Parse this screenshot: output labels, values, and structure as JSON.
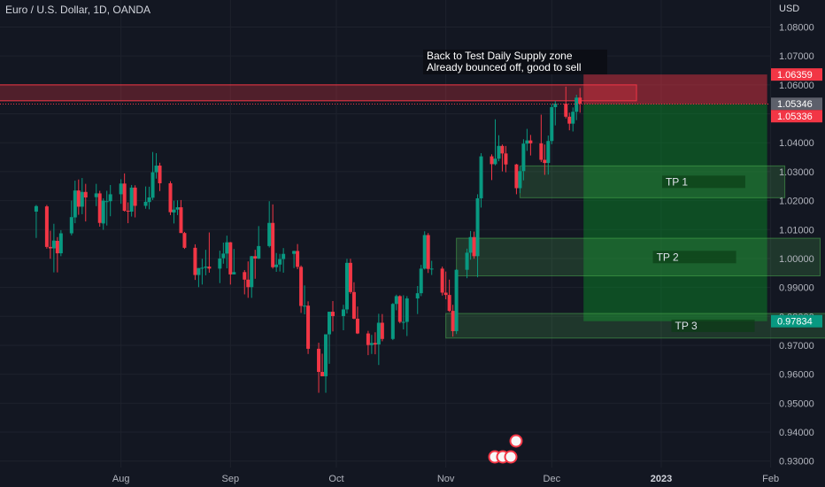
{
  "header": {
    "title": "Euro / U.S. Dollar, 1D, OANDA",
    "currency": "USD"
  },
  "annotation": {
    "line1": "Back to Test Daily Supply zone",
    "line2": "Already bounced off, good to sell"
  },
  "colors": {
    "background": "#131722",
    "up": "#089981",
    "down": "#f23645",
    "grid": "#1e222d",
    "text": "#b2b5be"
  },
  "chart_data": {
    "type": "candlestick",
    "symbol": "EURUSD",
    "y_axis": {
      "ticks": [
        "1.08000",
        "1.07000",
        "1.06000",
        "1.05000",
        "1.04000",
        "1.03000",
        "1.02000",
        "1.01000",
        "1.00000",
        "0.99000",
        "0.98000",
        "0.97000",
        "0.96000",
        "0.95000",
        "0.94000",
        "0.93000"
      ],
      "range": [
        0.928,
        1.083
      ]
    },
    "x_axis": {
      "labels": [
        "Aug",
        "Sep",
        "Oct",
        "Nov",
        "Dec",
        "2023",
        "Feb"
      ]
    },
    "price_labels": [
      {
        "text": "1.06359",
        "value": 1.06359,
        "kind": "stop"
      },
      {
        "text": "1.05346",
        "value": 1.05346,
        "kind": "current"
      },
      {
        "text": "1.05336",
        "value": 1.05336,
        "kind": "entry"
      },
      {
        "text": "0.97834",
        "value": 0.97834,
        "kind": "target"
      }
    ],
    "supply_zone": {
      "top": 1.06,
      "bottom": 1.0545,
      "start": "2022-06-20",
      "end": "2022-12-25"
    },
    "short_position": {
      "entry": 1.05336,
      "stop": 1.06359,
      "target": 0.97834,
      "start": "2022-12-10",
      "end": "2023-01-31"
    },
    "take_profits": [
      {
        "label": "TP 1",
        "top": 1.032,
        "bottom": 1.021,
        "start": "2022-11-22",
        "end": "2023-02-05"
      },
      {
        "label": "TP 2",
        "top": 1.007,
        "bottom": 0.994,
        "start": "2022-11-04",
        "end": "2023-02-15"
      },
      {
        "label": "TP 3",
        "top": 0.981,
        "bottom": 0.9725,
        "start": "2022-11-01",
        "end": "2023-02-27"
      }
    ],
    "candles": [
      {
        "date": "2022-07-08",
        "open": 1.0162,
        "high": 1.0185,
        "low": 1.0071,
        "close": 1.0181
      },
      {
        "date": "2022-07-11",
        "open": 1.018,
        "high": 1.0185,
        "low": 1.0034,
        "close": 1.004
      },
      {
        "date": "2022-07-12",
        "open": 1.004,
        "high": 1.0096,
        "low": 0.9999,
        "close": 1.0035
      },
      {
        "date": "2022-07-13",
        "open": 1.0035,
        "high": 1.012,
        "low": 0.9952,
        "close": 1.0062
      },
      {
        "date": "2022-07-14",
        "open": 1.0061,
        "high": 1.0074,
        "low": 0.9952,
        "close": 1.0018
      },
      {
        "date": "2022-07-15",
        "open": 1.0018,
        "high": 1.0098,
        "low": 1.0008,
        "close": 1.0087
      },
      {
        "date": "2022-07-18",
        "open": 1.0087,
        "high": 1.02,
        "low": 1.008,
        "close": 1.0143
      },
      {
        "date": "2022-07-19",
        "open": 1.0142,
        "high": 1.0269,
        "low": 1.0122,
        "close": 1.0235
      },
      {
        "date": "2022-07-20",
        "open": 1.0235,
        "high": 1.0273,
        "low": 1.0151,
        "close": 1.0179
      },
      {
        "date": "2022-07-21",
        "open": 1.0179,
        "high": 1.0278,
        "low": 1.0153,
        "close": 1.023
      },
      {
        "date": "2022-07-22",
        "open": 1.023,
        "high": 1.0258,
        "low": 1.0128,
        "close": 1.0211
      },
      {
        "date": "2022-07-25",
        "open": 1.0212,
        "high": 1.0258,
        "low": 1.0181,
        "close": 1.0225
      },
      {
        "date": "2022-07-26",
        "open": 1.0225,
        "high": 1.0234,
        "low": 1.011,
        "close": 1.0123
      },
      {
        "date": "2022-07-27",
        "open": 1.0121,
        "high": 1.0208,
        "low": 1.0099,
        "close": 1.02
      },
      {
        "date": "2022-07-28",
        "open": 1.0198,
        "high": 1.0234,
        "low": 1.0114,
        "close": 1.0198
      },
      {
        "date": "2022-07-29",
        "open": 1.0198,
        "high": 1.0254,
        "low": 1.0146,
        "close": 1.0222
      },
      {
        "date": "2022-08-01",
        "open": 1.0222,
        "high": 1.0274,
        "low": 1.0189,
        "close": 1.0259
      },
      {
        "date": "2022-08-02",
        "open": 1.0259,
        "high": 1.0294,
        "low": 1.0162,
        "close": 1.0165
      },
      {
        "date": "2022-08-03",
        "open": 1.0165,
        "high": 1.0194,
        "low": 1.0122,
        "close": 1.0162
      },
      {
        "date": "2022-08-04",
        "open": 1.0162,
        "high": 1.0254,
        "low": 1.0145,
        "close": 1.0245
      },
      {
        "date": "2022-08-05",
        "open": 1.0245,
        "high": 1.0253,
        "low": 1.0142,
        "close": 1.0182
      },
      {
        "date": "2022-08-08",
        "open": 1.0182,
        "high": 1.0249,
        "low": 1.0172,
        "close": 1.0196
      },
      {
        "date": "2022-08-09",
        "open": 1.0195,
        "high": 1.0248,
        "low": 1.017,
        "close": 1.0211
      },
      {
        "date": "2022-08-10",
        "open": 1.021,
        "high": 1.0368,
        "low": 1.0202,
        "close": 1.0298
      },
      {
        "date": "2022-08-11",
        "open": 1.0298,
        "high": 1.0364,
        "low": 1.0276,
        "close": 1.0321
      },
      {
        "date": "2022-08-12",
        "open": 1.0321,
        "high": 1.0331,
        "low": 1.0233,
        "close": 1.026
      },
      {
        "date": "2022-08-15",
        "open": 1.026,
        "high": 1.0267,
        "low": 1.015,
        "close": 1.016
      },
      {
        "date": "2022-08-16",
        "open": 1.0159,
        "high": 1.02,
        "low": 1.0121,
        "close": 1.0169
      },
      {
        "date": "2022-08-17",
        "open": 1.0169,
        "high": 1.0201,
        "low": 1.015,
        "close": 1.0177
      },
      {
        "date": "2022-08-18",
        "open": 1.0177,
        "high": 1.0202,
        "low": 1.0088,
        "close": 1.0088
      },
      {
        "date": "2022-08-19",
        "open": 1.0088,
        "high": 1.0092,
        "low": 1.0033,
        "close": 1.0037
      },
      {
        "date": "2022-08-22",
        "open": 1.0037,
        "high": 1.0049,
        "low": 0.9926,
        "close": 0.9943
      },
      {
        "date": "2022-08-23",
        "open": 0.9943,
        "high": 0.9967,
        "low": 0.9901,
        "close": 0.9967
      },
      {
        "date": "2022-08-24",
        "open": 0.9966,
        "high": 0.9999,
        "low": 0.991,
        "close": 0.9968
      },
      {
        "date": "2022-08-25",
        "open": 0.9968,
        "high": 1.003,
        "low": 0.9942,
        "close": 0.9972
      },
      {
        "date": "2022-08-26",
        "open": 0.9972,
        "high": 1.009,
        "low": 0.9951,
        "close": 0.9965
      },
      {
        "date": "2022-08-29",
        "open": 0.9965,
        "high": 1.0027,
        "low": 0.9915,
        "close": 1.0
      },
      {
        "date": "2022-08-30",
        "open": 1.0001,
        "high": 1.0055,
        "low": 0.9982,
        "close": 1.0017
      },
      {
        "date": "2022-08-31",
        "open": 1.0017,
        "high": 1.0079,
        "low": 0.9966,
        "close": 1.0056
      },
      {
        "date": "2022-09-01",
        "open": 1.0056,
        "high": 1.0057,
        "low": 0.991,
        "close": 0.9945
      },
      {
        "date": "2022-09-02",
        "open": 0.9945,
        "high": 1.0033,
        "low": 0.9945,
        "close": 0.9953
      },
      {
        "date": "2022-09-05",
        "open": 0.9953,
        "high": 0.996,
        "low": 0.9876,
        "close": 0.9927
      },
      {
        "date": "2022-09-06",
        "open": 0.9927,
        "high": 0.999,
        "low": 0.9864,
        "close": 0.9901
      },
      {
        "date": "2022-09-07",
        "open": 0.9901,
        "high": 1.0009,
        "low": 0.9864,
        "close": 1.0008
      },
      {
        "date": "2022-09-08",
        "open": 1.0008,
        "high": 1.003,
        "low": 0.993,
        "close": 1.0
      },
      {
        "date": "2022-09-09",
        "open": 1.0,
        "high": 1.0112,
        "low": 0.9998,
        "close": 1.0043
      },
      {
        "date": "2022-09-12",
        "open": 1.0043,
        "high": 1.0198,
        "low": 1.0038,
        "close": 1.0123
      },
      {
        "date": "2022-09-13",
        "open": 1.0123,
        "high": 1.0187,
        "low": 0.9965,
        "close": 0.997
      },
      {
        "date": "2022-09-14",
        "open": 0.997,
        "high": 1.0019,
        "low": 0.9954,
        "close": 0.9979
      },
      {
        "date": "2022-09-15",
        "open": 0.9979,
        "high": 1.0016,
        "low": 0.9955,
        "close": 0.9998
      },
      {
        "date": "2022-09-16",
        "open": 0.9998,
        "high": 1.0036,
        "low": 0.9951,
        "close": 1.0016
      },
      {
        "date": "2022-09-19",
        "open": 1.0016,
        "high": 1.0027,
        "low": 0.9967,
        "close": 1.0026
      },
      {
        "date": "2022-09-20",
        "open": 1.0026,
        "high": 1.005,
        "low": 0.9963,
        "close": 0.9971
      },
      {
        "date": "2022-09-21",
        "open": 0.9971,
        "high": 0.9976,
        "low": 0.9812,
        "close": 0.9836
      },
      {
        "date": "2022-09-22",
        "open": 0.9836,
        "high": 0.9907,
        "low": 0.9807,
        "close": 0.9837
      },
      {
        "date": "2022-09-23",
        "open": 0.9837,
        "high": 0.9852,
        "low": 0.967,
        "close": 0.9688
      },
      {
        "date": "2022-09-26",
        "open": 0.9688,
        "high": 0.9709,
        "low": 0.9536,
        "close": 0.9608
      },
      {
        "date": "2022-09-27",
        "open": 0.9608,
        "high": 0.9671,
        "low": 0.9595,
        "close": 0.9593
      },
      {
        "date": "2022-09-28",
        "open": 0.9593,
        "high": 0.9738,
        "low": 0.9536,
        "close": 0.9738
      },
      {
        "date": "2022-09-29",
        "open": 0.9738,
        "high": 0.9816,
        "low": 0.9636,
        "close": 0.9816
      },
      {
        "date": "2022-09-30",
        "open": 0.9816,
        "high": 0.9853,
        "low": 0.9748,
        "close": 0.9801
      },
      {
        "date": "2022-10-03",
        "open": 0.9801,
        "high": 0.984,
        "low": 0.9752,
        "close": 0.9824
      },
      {
        "date": "2022-10-04",
        "open": 0.9824,
        "high": 0.9999,
        "low": 0.981,
        "close": 0.9985
      },
      {
        "date": "2022-10-05",
        "open": 0.9985,
        "high": 0.9999,
        "low": 0.9878,
        "close": 0.9884
      },
      {
        "date": "2022-10-06",
        "open": 0.9884,
        "high": 0.9918,
        "low": 0.979,
        "close": 0.9792
      },
      {
        "date": "2022-10-07",
        "open": 0.9792,
        "high": 0.9834,
        "low": 0.9739,
        "close": 0.9741
      },
      {
        "date": "2022-10-10",
        "open": 0.9741,
        "high": 0.975,
        "low": 0.9666,
        "close": 0.9701
      },
      {
        "date": "2022-10-11",
        "open": 0.9701,
        "high": 0.9736,
        "low": 0.967,
        "close": 0.9708
      },
      {
        "date": "2022-10-12",
        "open": 0.9708,
        "high": 0.9745,
        "low": 0.9669,
        "close": 0.9703
      },
      {
        "date": "2022-10-13",
        "open": 0.9703,
        "high": 0.9809,
        "low": 0.9632,
        "close": 0.9778
      },
      {
        "date": "2022-10-14",
        "open": 0.9778,
        "high": 0.9808,
        "low": 0.9714,
        "close": 0.9722
      },
      {
        "date": "2022-10-17",
        "open": 0.9722,
        "high": 0.9846,
        "low": 0.9718,
        "close": 0.9843
      },
      {
        "date": "2022-10-18",
        "open": 0.9843,
        "high": 0.9875,
        "low": 0.9821,
        "close": 0.987
      },
      {
        "date": "2022-10-19",
        "open": 0.987,
        "high": 0.9873,
        "low": 0.9776,
        "close": 0.9781
      },
      {
        "date": "2022-10-20",
        "open": 0.9781,
        "high": 0.9873,
        "low": 0.9755,
        "close": 0.9781
      },
      {
        "date": "2022-10-21",
        "open": 0.9781,
        "high": 0.987,
        "low": 0.9732,
        "close": 0.9862
      },
      {
        "date": "2022-10-24",
        "open": 0.9862,
        "high": 0.9905,
        "low": 0.9808,
        "close": 0.988
      },
      {
        "date": "2022-10-25",
        "open": 0.988,
        "high": 0.9978,
        "low": 0.987,
        "close": 0.9965
      },
      {
        "date": "2022-10-26",
        "open": 0.9965,
        "high": 1.0094,
        "low": 0.9962,
        "close": 1.0081
      },
      {
        "date": "2022-10-27",
        "open": 1.0081,
        "high": 1.0088,
        "low": 0.995,
        "close": 0.9964
      },
      {
        "date": "2022-10-28",
        "open": 0.9964,
        "high": 0.9992,
        "low": 0.9943,
        "close": 0.9965
      },
      {
        "date": "2022-10-31",
        "open": 0.9965,
        "high": 0.9972,
        "low": 0.9872,
        "close": 0.9882
      },
      {
        "date": "2022-11-01",
        "open": 0.9882,
        "high": 0.9955,
        "low": 0.9859,
        "close": 0.9874
      },
      {
        "date": "2022-11-02",
        "open": 0.9874,
        "high": 0.9927,
        "low": 0.9815,
        "close": 0.9819
      },
      {
        "date": "2022-11-03",
        "open": 0.9819,
        "high": 0.984,
        "low": 0.973,
        "close": 0.9749
      },
      {
        "date": "2022-11-04",
        "open": 0.9749,
        "high": 0.9963,
        "low": 0.9739,
        "close": 0.9961
      },
      {
        "date": "2022-11-07",
        "open": 0.9961,
        "high": 1.0034,
        "low": 0.9932,
        "close": 1.002
      },
      {
        "date": "2022-11-08",
        "open": 1.002,
        "high": 1.0095,
        "low": 0.9996,
        "close": 1.0074
      },
      {
        "date": "2022-11-09",
        "open": 1.0074,
        "high": 1.0093,
        "low": 0.9999,
        "close": 1.0008
      },
      {
        "date": "2022-11-10",
        "open": 1.0008,
        "high": 1.0222,
        "low": 0.9935,
        "close": 1.0208
      },
      {
        "date": "2022-11-11",
        "open": 1.0208,
        "high": 1.0364,
        "low": 1.0176,
        "close": 1.0353
      },
      {
        "date": "2022-11-14",
        "open": 1.0353,
        "high": 1.036,
        "low": 1.0271,
        "close": 1.0326
      },
      {
        "date": "2022-11-15",
        "open": 1.0326,
        "high": 1.0481,
        "low": 1.0322,
        "close": 1.0345
      },
      {
        "date": "2022-11-16",
        "open": 1.0345,
        "high": 1.0426,
        "low": 1.0336,
        "close": 1.0389
      },
      {
        "date": "2022-11-17",
        "open": 1.0389,
        "high": 1.0394,
        "low": 1.0301,
        "close": 1.0363
      },
      {
        "date": "2022-11-18",
        "open": 1.0363,
        "high": 1.0389,
        "low": 1.0298,
        "close": 1.0325
      },
      {
        "date": "2022-11-21",
        "open": 1.0325,
        "high": 1.0327,
        "low": 1.0222,
        "close": 1.0243
      },
      {
        "date": "2022-11-22",
        "open": 1.0243,
        "high": 1.0318,
        "low": 1.0226,
        "close": 1.0302
      },
      {
        "date": "2022-11-23",
        "open": 1.0302,
        "high": 1.0412,
        "low": 1.027,
        "close": 1.0397
      },
      {
        "date": "2022-11-24",
        "open": 1.0397,
        "high": 1.0448,
        "low": 1.0372,
        "close": 1.0408
      },
      {
        "date": "2022-11-25",
        "open": 1.0408,
        "high": 1.0427,
        "low": 1.0356,
        "close": 1.0398
      },
      {
        "date": "2022-11-28",
        "open": 1.0398,
        "high": 1.0497,
        "low": 1.0333,
        "close": 1.0341
      },
      {
        "date": "2022-11-29",
        "open": 1.0341,
        "high": 1.0394,
        "low": 1.0289,
        "close": 1.033
      },
      {
        "date": "2022-11-30",
        "open": 1.033,
        "high": 1.0425,
        "low": 1.029,
        "close": 1.0406
      },
      {
        "date": "2022-12-01",
        "open": 1.0406,
        "high": 1.0534,
        "low": 1.0395,
        "close": 1.0523
      },
      {
        "date": "2022-12-02",
        "open": 1.0523,
        "high": 1.0545,
        "low": 1.046,
        "close": 1.0535
      },
      {
        "date": "2022-12-05",
        "open": 1.0535,
        "high": 1.0594,
        "low": 1.0484,
        "close": 1.049
      },
      {
        "date": "2022-12-06",
        "open": 1.049,
        "high": 1.0504,
        "low": 1.0443,
        "close": 1.0466
      },
      {
        "date": "2022-12-07",
        "open": 1.0466,
        "high": 1.0522,
        "low": 1.0439,
        "close": 1.0507
      },
      {
        "date": "2022-12-08",
        "open": 1.0507,
        "high": 1.0566,
        "low": 1.0478,
        "close": 1.0556
      },
      {
        "date": "2022-12-09",
        "open": 1.0556,
        "high": 1.0589,
        "low": 1.0504,
        "close": 1.0535
      }
    ]
  }
}
